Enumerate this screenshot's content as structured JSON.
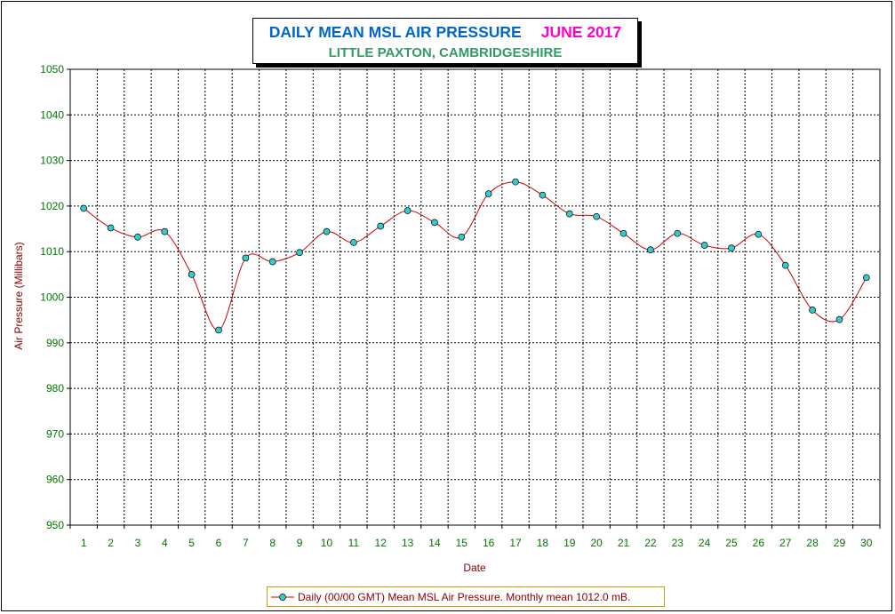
{
  "title": {
    "main": "DAILY MEAN MSL AIR PRESSURE",
    "month": "JUNE 2017",
    "subtitle": "LITTLE PAXTON, CAMBRIDGESHIRE"
  },
  "colors": {
    "line": "#cc0000",
    "marker_fill": "#33cccc",
    "grid": "#000000",
    "tick_text": "#007700",
    "axis_title": "#880000"
  },
  "chart_data": {
    "type": "line",
    "xlabel": "Date",
    "ylabel": "Air Pressure (Millibars)",
    "ylim": [
      950,
      1050
    ],
    "y_ticks": [
      950,
      960,
      970,
      980,
      990,
      1000,
      1010,
      1020,
      1030,
      1040,
      1050
    ],
    "x": [
      1,
      2,
      3,
      4,
      5,
      6,
      7,
      8,
      9,
      10,
      11,
      12,
      13,
      14,
      15,
      16,
      17,
      18,
      19,
      20,
      21,
      22,
      23,
      24,
      25,
      26,
      27,
      28,
      29,
      30
    ],
    "grid": true,
    "legend_position": "bottom-center",
    "series": [
      {
        "name": "Daily (00/00 GMT) Mean MSL Air Pressure. Monthly mean 1012.0 mB.",
        "values": [
          1019.5,
          1015.2,
          1013.2,
          1014.4,
          1005.0,
          992.8,
          1008.6,
          1007.8,
          1009.8,
          1014.4,
          1012.0,
          1015.6,
          1019.0,
          1016.4,
          1013.2,
          1022.7,
          1025.3,
          1022.4,
          1018.3,
          1017.7,
          1014.0,
          1010.4,
          1014.0,
          1011.4,
          1010.8,
          1013.8,
          1007.0,
          997.2,
          995.1,
          1004.3
        ]
      }
    ]
  }
}
